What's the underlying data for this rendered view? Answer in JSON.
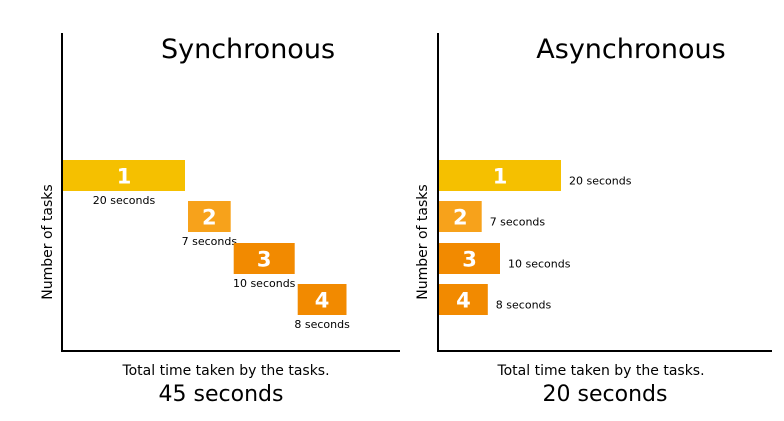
{
  "panels": [
    {
      "id": "sync",
      "title": "Synchronous",
      "y_axis_label": "Number of tasks",
      "caption": "Total time taken by the tasks.",
      "total": "45 seconds",
      "tasks": [
        {
          "number": "1",
          "duration": "20 seconds",
          "seconds": 20,
          "color": "#F5C000"
        },
        {
          "number": "2",
          "duration": "7 seconds",
          "seconds": 7,
          "color": "#F7A21B"
        },
        {
          "number": "3",
          "duration": "10 seconds",
          "seconds": 10,
          "color": "#F28A00"
        },
        {
          "number": "4",
          "duration": "8 seconds",
          "seconds": 8,
          "color": "#F28A00"
        }
      ]
    },
    {
      "id": "async",
      "title": "Asynchronous",
      "y_axis_label": "Number of tasks",
      "caption": "Total time taken by the tasks.",
      "total": "20 seconds",
      "tasks": [
        {
          "number": "1",
          "duration": "20 seconds",
          "seconds": 20,
          "color": "#F5C000"
        },
        {
          "number": "2",
          "duration": "7 seconds",
          "seconds": 7,
          "color": "#F7A21B"
        },
        {
          "number": "3",
          "duration": "10 seconds",
          "seconds": 10,
          "color": "#F28A00"
        },
        {
          "number": "4",
          "duration": "8 seconds",
          "seconds": 8,
          "color": "#F28A00"
        }
      ]
    }
  ]
}
